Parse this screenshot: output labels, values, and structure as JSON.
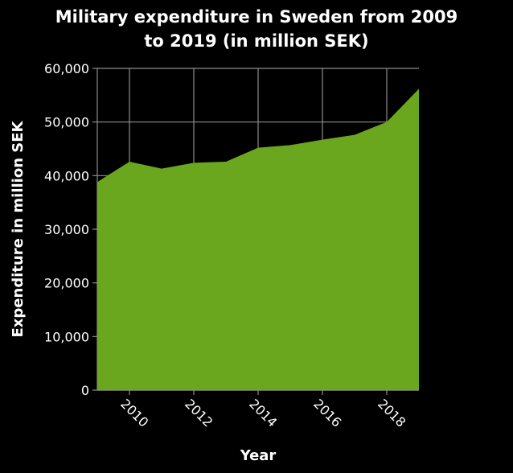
{
  "chart_data": {
    "type": "area",
    "title": "Military expenditure in Sweden from 2009 to 2019 (in million SEK)",
    "title_lines": [
      "Military expenditure in Sweden from 2009",
      "to 2019 (in million SEK)"
    ],
    "xlabel": "Year",
    "ylabel": "Expenditure in million SEK",
    "x": [
      2009,
      2010,
      2011,
      2012,
      2013,
      2014,
      2015,
      2016,
      2017,
      2018,
      2019
    ],
    "series": [
      {
        "values": [
          38800,
          42600,
          41300,
          42400,
          42600,
          45200,
          45700,
          46700,
          47600,
          50000,
          56200
        ]
      }
    ],
    "xlim": [
      2009,
      2019
    ],
    "ylim": [
      0,
      60000
    ],
    "x_ticks": [
      2010,
      2012,
      2014,
      2016,
      2018
    ],
    "x_tick_labels": [
      "2010",
      "2012",
      "2014",
      "2016",
      "2018"
    ],
    "y_ticks": [
      0,
      10000,
      20000,
      30000,
      40000,
      50000,
      60000
    ],
    "y_tick_labels": [
      "0",
      "10,000",
      "20,000",
      "30,000",
      "40,000",
      "50,000",
      "60,000"
    ],
    "grid": true,
    "colors": {
      "area": "#6aa61e",
      "background": "#000000",
      "grid": "#8c8c8c",
      "text": "#ffffff"
    }
  }
}
